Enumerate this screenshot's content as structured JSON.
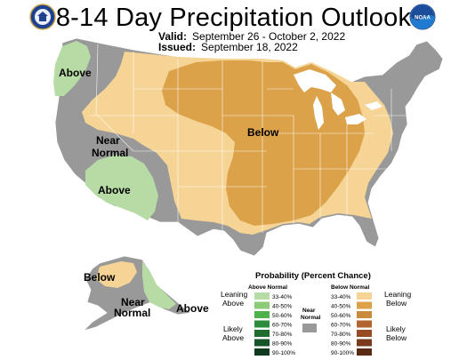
{
  "header": {
    "title": "8-14 Day Precipitation Outlook",
    "valid_label": "Valid:",
    "valid_value": "September 26 - October 2, 2022",
    "issued_label": "Issued:",
    "issued_value": "September 18, 2022"
  },
  "logos": {
    "left": "doc-seal-icon",
    "right": "noaa-logo-icon"
  },
  "map_labels": {
    "above_nw": "Above",
    "near_normal_w1": "Near",
    "near_normal_w2": "Normal",
    "above_sw": "Above",
    "below_central": "Below",
    "alaska_below": "Below",
    "alaska_near1": "Near",
    "alaska_near2": "Normal",
    "alaska_above": "Above"
  },
  "colors": {
    "near_normal": "#999999",
    "below_33_40": "#f5d495",
    "below_40_50": "#dca24a",
    "above_33_40": "#b7dba5",
    "outline": "#ffffff"
  },
  "legend": {
    "title": "Probability (Percent Chance)",
    "above_header": "Above Normal",
    "below_header": "Below Normal",
    "near_label_1": "Near",
    "near_label_2": "Normal",
    "leaning_above_1": "Leaning",
    "leaning_above_2": "Above",
    "likely_above_1": "Likely",
    "likely_above_2": "Above",
    "leaning_below_1": "Leaning",
    "leaning_below_2": "Below",
    "likely_below_1": "Likely",
    "likely_below_2": "Below",
    "above_items": [
      {
        "range": "33-40%",
        "color": "#b7dba5"
      },
      {
        "range": "40-50%",
        "color": "#8ccc78"
      },
      {
        "range": "50-60%",
        "color": "#4fb14a"
      },
      {
        "range": "60-70%",
        "color": "#2c8c3c"
      },
      {
        "range": "70-80%",
        "color": "#1f6e30"
      },
      {
        "range": "80-90%",
        "color": "#16542a"
      },
      {
        "range": "90-100%",
        "color": "#0f3a1d"
      }
    ],
    "below_items": [
      {
        "range": "33-40%",
        "color": "#f5d495"
      },
      {
        "range": "40-50%",
        "color": "#dca24a"
      },
      {
        "range": "50-60%",
        "color": "#c98a3c"
      },
      {
        "range": "60-70%",
        "color": "#b0662e"
      },
      {
        "range": "70-80%",
        "color": "#964b22"
      },
      {
        "range": "80-90%",
        "color": "#7a3a1c"
      },
      {
        "range": "90-100%",
        "color": "#5a2a14"
      }
    ]
  }
}
